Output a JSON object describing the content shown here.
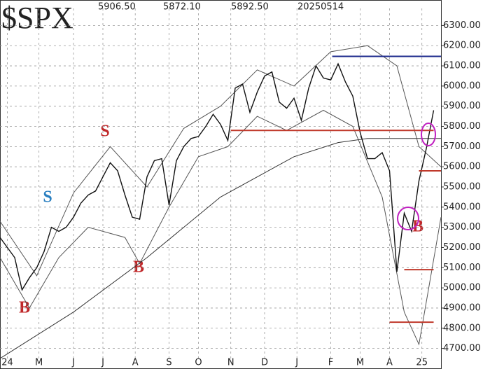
{
  "chart_data": {
    "type": "line",
    "title": "$SPX",
    "header": [
      "5906.50",
      "5872.10",
      "5892.50",
      "20250514"
    ],
    "xlim": [
      0,
      60
    ],
    "ylim": [
      4650,
      6350
    ],
    "xticks": [
      {
        "value": 1,
        "label": "24"
      },
      {
        "value": 5.3,
        "label": "M"
      },
      {
        "value": 10,
        "label": "J"
      },
      {
        "value": 14,
        "label": "J"
      },
      {
        "value": 18.4,
        "label": "A"
      },
      {
        "value": 23,
        "label": "S"
      },
      {
        "value": 27,
        "label": "O"
      },
      {
        "value": 31.4,
        "label": "N"
      },
      {
        "value": 36,
        "label": "D"
      },
      {
        "value": 40.4,
        "label": "J"
      },
      {
        "value": 45,
        "label": "F"
      },
      {
        "value": 49,
        "label": "M"
      },
      {
        "value": 53,
        "label": "A"
      },
      {
        "value": 57.4,
        "label": "25"
      }
    ],
    "yticks": [
      {
        "value": 4700,
        "label": "4700.00"
      },
      {
        "value": 4800,
        "label": "4800.00"
      },
      {
        "value": 4900,
        "label": "4900.00"
      },
      {
        "value": 5000,
        "label": "5000.00"
      },
      {
        "value": 5100,
        "label": "5100.00"
      },
      {
        "value": 5200,
        "label": "5200.00"
      },
      {
        "value": 5300,
        "label": "5300.00"
      },
      {
        "value": 5400,
        "label": "5400.00"
      },
      {
        "value": 5500,
        "label": "5500.00"
      },
      {
        "value": 5600,
        "label": "5600.00"
      },
      {
        "value": 5700,
        "label": "5700.00"
      },
      {
        "value": 5800,
        "label": "5800.00"
      },
      {
        "value": 5900,
        "label": "5900.00"
      },
      {
        "value": 6000,
        "label": "6000.00"
      },
      {
        "value": 6100,
        "label": "6100.00"
      },
      {
        "value": 6200,
        "label": "6200.00"
      },
      {
        "value": 6300,
        "label": "6300.00"
      }
    ],
    "grid": true,
    "series": [
      {
        "color": "#555555",
        "width": 1,
        "x": [
          0,
          5,
          10,
          15,
          20,
          25,
          30,
          35,
          40,
          45,
          50,
          54,
          57,
          60
        ],
        "values": [
          5330,
          5060,
          5470,
          5700,
          5500,
          5790,
          5900,
          6080,
          6000,
          6170,
          6200,
          6100,
          5700,
          5600
        ]
      },
      {
        "color": "#555555",
        "width": 1,
        "x": [
          0,
          4,
          8,
          12,
          17,
          19,
          23,
          27,
          31,
          35,
          39,
          44,
          48,
          52,
          55,
          57,
          60
        ],
        "values": [
          5150,
          4900,
          5150,
          5300,
          5250,
          5120,
          5400,
          5650,
          5700,
          5850,
          5780,
          5880,
          5800,
          5450,
          4880,
          4720,
          5350
        ]
      },
      {
        "color": "#333333",
        "width": 1,
        "x": [
          0,
          10,
          20,
          30,
          40,
          46,
          50,
          55,
          60
        ],
        "values": [
          4650,
          4880,
          5150,
          5450,
          5650,
          5720,
          5740,
          5740,
          5740
        ]
      },
      {
        "color": "#111111",
        "width": 1.4,
        "x": [
          0,
          1,
          2,
          3,
          4,
          5,
          6,
          7,
          8,
          9,
          10,
          11,
          12,
          13,
          14,
          15,
          16,
          17,
          18,
          19,
          20,
          21,
          22,
          23,
          24,
          25,
          26,
          27,
          28,
          29,
          30,
          31,
          32,
          33,
          34,
          35,
          36,
          37,
          38,
          39,
          40,
          41,
          42,
          43,
          44,
          45,
          46,
          47,
          48,
          49,
          50,
          51,
          52,
          53,
          54,
          55,
          56,
          57,
          58,
          59
        ],
        "values": [
          5250,
          5200,
          5150,
          4990,
          5050,
          5100,
          5180,
          5300,
          5280,
          5300,
          5350,
          5420,
          5460,
          5480,
          5550,
          5620,
          5580,
          5460,
          5350,
          5340,
          5550,
          5630,
          5640,
          5410,
          5630,
          5700,
          5740,
          5750,
          5800,
          5860,
          5810,
          5730,
          5990,
          6010,
          5870,
          5970,
          6050,
          6070,
          5920,
          5890,
          5940,
          5830,
          5990,
          6100,
          6040,
          6030,
          6110,
          6020,
          5950,
          5770,
          5640,
          5640,
          5670,
          5580,
          5080,
          5370,
          5280,
          5530,
          5690,
          5880
        ]
      }
    ],
    "hlines": [
      {
        "value": 6147,
        "x": [
          45.2,
          60
        ],
        "color": "#1c2a8c"
      },
      {
        "value": 5780,
        "x": [
          31.4,
          59
        ],
        "color": "#c0392b"
      },
      {
        "value": 5580,
        "x": [
          57,
          60
        ],
        "color": "#c0392b"
      },
      {
        "value": 5090,
        "x": [
          55,
          59
        ],
        "color": "#c0392b"
      },
      {
        "value": 4830,
        "x": [
          53,
          59
        ],
        "color": "#c0392b"
      }
    ],
    "annotations": [
      "B",
      "S",
      "S",
      "B",
      "B"
    ]
  }
}
